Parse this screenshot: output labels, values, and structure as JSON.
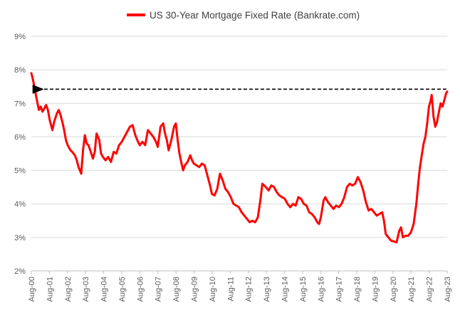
{
  "chart_data": {
    "type": "line",
    "title": "",
    "xlabel": "",
    "ylabel": "",
    "ylim": [
      2,
      9
    ],
    "yticks": [
      2,
      3,
      4,
      5,
      6,
      7,
      8,
      9
    ],
    "ytick_labels": [
      "2%",
      "3%",
      "4%",
      "5%",
      "6%",
      "7%",
      "8%",
      "9%"
    ],
    "xtick_labels": [
      "Aug-00",
      "Aug-01",
      "Aug-02",
      "Aug-03",
      "Aug-04",
      "Aug-05",
      "Aug-06",
      "Aug-07",
      "Aug-08",
      "Aug-09",
      "Aug-10",
      "Aug-11",
      "Aug-12",
      "Aug-13",
      "Aug-14",
      "Aug-15",
      "Aug-16",
      "Aug-17",
      "Aug-18",
      "Aug-19",
      "Aug-20",
      "Aug-21",
      "Aug-22",
      "Aug-23"
    ],
    "xlim": [
      2000.58,
      2023.66
    ],
    "legend": {
      "label": "US 30-Year Mortgage Fixed Rate (Bankrate.com)",
      "placement": "top-center"
    },
    "series": [
      {
        "name": "US 30-Year Mortgage Fixed Rate (Bankrate.com)",
        "color": "#ff0000",
        "x": [
          2000.58,
          2000.65,
          2000.75,
          2000.85,
          2001.0,
          2001.1,
          2001.2,
          2001.3,
          2001.4,
          2001.5,
          2001.6,
          2001.75,
          2001.85,
          2002.0,
          2002.1,
          2002.2,
          2002.3,
          2002.4,
          2002.5,
          2002.6,
          2002.75,
          2002.85,
          2003.0,
          2003.1,
          2003.2,
          2003.35,
          2003.45,
          2003.55,
          2003.65,
          2003.75,
          2003.85,
          2004.0,
          2004.1,
          2004.2,
          2004.35,
          2004.45,
          2004.55,
          2004.7,
          2004.85,
          2005.0,
          2005.15,
          2005.3,
          2005.45,
          2005.6,
          2005.75,
          2005.9,
          2006.05,
          2006.2,
          2006.35,
          2006.5,
          2006.6,
          2006.75,
          2006.9,
          2007.05,
          2007.2,
          2007.35,
          2007.5,
          2007.6,
          2007.75,
          2007.9,
          2008.0,
          2008.1,
          2008.2,
          2008.35,
          2008.5,
          2008.6,
          2008.7,
          2008.8,
          2008.9,
          2009.0,
          2009.1,
          2009.25,
          2009.4,
          2009.5,
          2009.6,
          2009.75,
          2009.9,
          2010.05,
          2010.2,
          2010.35,
          2010.5,
          2010.6,
          2010.75,
          2010.9,
          2011.05,
          2011.2,
          2011.35,
          2011.5,
          2011.65,
          2011.8,
          2011.95,
          2012.1,
          2012.25,
          2012.4,
          2012.55,
          2012.7,
          2012.85,
          2013.0,
          2013.15,
          2013.3,
          2013.4,
          2013.5,
          2013.6,
          2013.75,
          2013.9,
          2014.05,
          2014.2,
          2014.35,
          2014.5,
          2014.65,
          2014.8,
          2014.95,
          2015.1,
          2015.25,
          2015.4,
          2015.55,
          2015.7,
          2015.85,
          2016.0,
          2016.15,
          2016.3,
          2016.45,
          2016.55,
          2016.65,
          2016.8,
          2016.9,
          2017.05,
          2017.2,
          2017.35,
          2017.5,
          2017.65,
          2017.8,
          2017.95,
          2018.1,
          2018.25,
          2018.4,
          2018.55,
          2018.7,
          2018.85,
          2019.0,
          2019.15,
          2019.3,
          2019.45,
          2019.6,
          2019.75,
          2019.9,
          2020.05,
          2020.15,
          2020.25,
          2020.4,
          2020.55,
          2020.7,
          2020.85,
          2021.0,
          2021.1,
          2021.2,
          2021.35,
          2021.5,
          2021.65,
          2021.8,
          2021.95,
          2022.05,
          2022.15,
          2022.25,
          2022.35,
          2022.45,
          2022.55,
          2022.65,
          2022.75,
          2022.8,
          2022.9,
          2023.0,
          2023.1,
          2023.2,
          2023.3,
          2023.4,
          2023.5,
          2023.6,
          2023.66
        ],
        "values": [
          7.9,
          7.75,
          7.5,
          7.2,
          6.8,
          6.9,
          6.75,
          6.85,
          6.95,
          6.8,
          6.5,
          6.2,
          6.45,
          6.7,
          6.8,
          6.65,
          6.45,
          6.2,
          5.9,
          5.75,
          5.6,
          5.55,
          5.45,
          5.3,
          5.1,
          4.9,
          5.6,
          6.05,
          5.8,
          5.75,
          5.6,
          5.35,
          5.55,
          6.1,
          5.9,
          5.5,
          5.4,
          5.3,
          5.4,
          5.25,
          5.55,
          5.5,
          5.75,
          5.85,
          6.0,
          6.15,
          6.3,
          6.35,
          6.05,
          5.85,
          5.75,
          5.85,
          5.75,
          6.2,
          6.1,
          6.0,
          5.85,
          5.7,
          6.3,
          6.4,
          6.1,
          5.9,
          5.6,
          5.9,
          6.3,
          6.4,
          5.9,
          5.5,
          5.25,
          5.0,
          5.15,
          5.25,
          5.45,
          5.3,
          5.2,
          5.15,
          5.1,
          5.2,
          5.15,
          4.85,
          4.55,
          4.3,
          4.25,
          4.45,
          4.9,
          4.7,
          4.45,
          4.35,
          4.2,
          4.0,
          3.95,
          3.9,
          3.75,
          3.65,
          3.55,
          3.45,
          3.5,
          3.45,
          3.6,
          4.15,
          4.6,
          4.55,
          4.5,
          4.4,
          4.55,
          4.5,
          4.35,
          4.25,
          4.2,
          4.15,
          4.0,
          3.9,
          4.0,
          3.95,
          4.2,
          4.15,
          4.0,
          3.95,
          3.75,
          3.7,
          3.6,
          3.45,
          3.4,
          3.6,
          4.1,
          4.2,
          4.05,
          3.95,
          3.85,
          3.95,
          3.9,
          4.0,
          4.2,
          4.5,
          4.6,
          4.55,
          4.6,
          4.8,
          4.65,
          4.4,
          4.05,
          3.8,
          3.85,
          3.75,
          3.65,
          3.7,
          3.75,
          3.5,
          3.1,
          3.0,
          2.9,
          2.88,
          2.85,
          3.2,
          3.3,
          3.0,
          3.05,
          3.05,
          3.15,
          3.4,
          4.0,
          4.6,
          5.1,
          5.45,
          5.8,
          6.0,
          6.4,
          6.9,
          7.1,
          7.25,
          6.6,
          6.3,
          6.45,
          6.75,
          7.0,
          6.9,
          7.1,
          7.3,
          7.35
        ]
      }
    ],
    "reference_arrow": {
      "from": {
        "x": 2023.62,
        "y": 7.42
      },
      "to": {
        "x": 2000.9,
        "y": 7.42
      },
      "style": "dashed",
      "color": "#000000"
    },
    "grid": true,
    "gridline_color": "#d9d9d9"
  }
}
